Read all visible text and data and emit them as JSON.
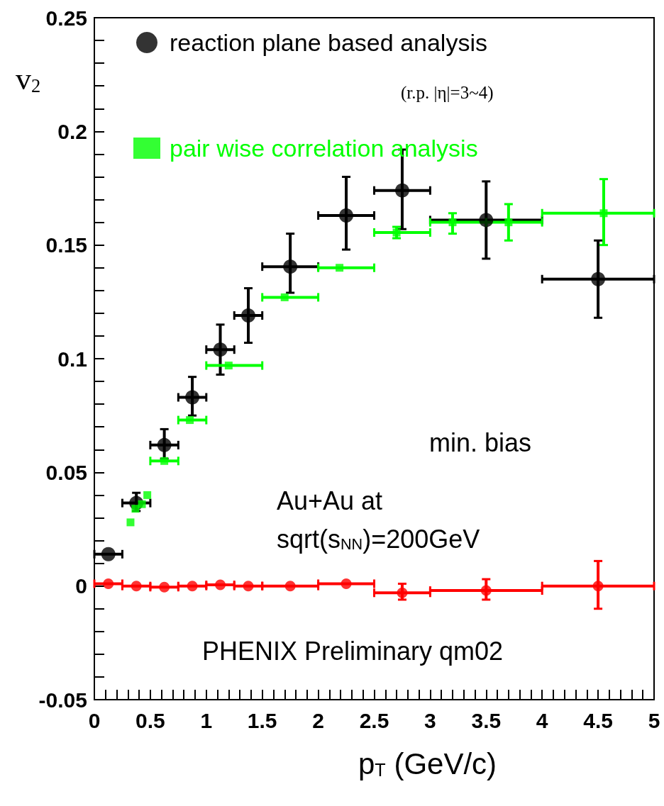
{
  "chart_data": {
    "type": "scatter",
    "xlabel": "p$_{T}$ (GeV/c)",
    "ylabel": "v$_{2}$",
    "xlim": [
      0,
      5
    ],
    "xticks": [
      0,
      {
        "value": 0.1,
        "label": null
      },
      {
        "value": 0.2,
        "label": null
      },
      {
        "value": 0.3,
        "label": null
      },
      {
        "value": 0.4,
        "label": null
      },
      0.5,
      {
        "value": 0.6,
        "label": null
      },
      {
        "value": 0.7,
        "label": null
      },
      {
        "value": 0.8,
        "label": null
      },
      {
        "value": 0.9,
        "label": null
      },
      1,
      {
        "value": 1.1,
        "label": null
      },
      {
        "value": 1.2,
        "label": null
      },
      {
        "value": 1.3,
        "label": null
      },
      {
        "value": 1.4,
        "label": null
      },
      1.5,
      {
        "value": 1.6,
        "label": null
      },
      {
        "value": 1.7,
        "label": null
      },
      {
        "value": 1.8,
        "label": null
      },
      {
        "value": 1.9,
        "label": null
      },
      2,
      {
        "value": 2.1,
        "label": null
      },
      {
        "value": 2.2,
        "label": null
      },
      {
        "value": 2.3,
        "label": null
      },
      {
        "value": 2.4,
        "label": null
      },
      2.5,
      {
        "value": 2.6,
        "label": null
      },
      {
        "value": 2.7,
        "label": null
      },
      {
        "value": 2.8,
        "label": null
      },
      {
        "value": 2.9,
        "label": null
      },
      3,
      {
        "value": 3.1,
        "label": null
      },
      {
        "value": 3.2,
        "label": null
      },
      {
        "value": 3.3,
        "label": null
      },
      {
        "value": 3.4,
        "label": null
      },
      3.5,
      {
        "value": 3.6,
        "label": null
      },
      {
        "value": 3.7,
        "label": null
      },
      {
        "value": 3.8,
        "label": null
      },
      {
        "value": 3.9,
        "label": null
      },
      4,
      {
        "value": 4.1,
        "label": null
      },
      {
        "value": 4.2,
        "label": null
      },
      {
        "value": 4.3,
        "label": null
      },
      {
        "value": 4.4,
        "label": null
      },
      4.5,
      {
        "value": 4.6,
        "label": null
      },
      {
        "value": 4.7,
        "label": null
      },
      {
        "value": 4.8,
        "label": null
      },
      {
        "value": 4.9,
        "label": null
      },
      5
    ],
    "ylim": [
      -0.05,
      0.25
    ],
    "yticks": [
      -0.05,
      {
        "value": -0.04,
        "label": null
      },
      {
        "value": -0.03,
        "label": null
      },
      {
        "value": -0.02,
        "label": null
      },
      {
        "value": -0.01,
        "label": null
      },
      0,
      {
        "value": 0.01,
        "label": null
      },
      {
        "value": 0.02,
        "label": null
      },
      {
        "value": 0.03,
        "label": null
      },
      {
        "value": 0.04,
        "label": null
      },
      0.05,
      {
        "value": 0.06,
        "label": null
      },
      {
        "value": 0.07,
        "label": null
      },
      {
        "value": 0.08,
        "label": null
      },
      {
        "value": 0.09,
        "label": null
      },
      0.1,
      {
        "value": 0.11,
        "label": null
      },
      {
        "value": 0.12,
        "label": null
      },
      {
        "value": 0.13,
        "label": null
      },
      {
        "value": 0.14,
        "label": null
      },
      0.15,
      {
        "value": 0.16,
        "label": null
      },
      {
        "value": 0.17,
        "label": null
      },
      {
        "value": 0.18,
        "label": null
      },
      {
        "value": 0.19,
        "label": null
      },
      0.2,
      {
        "value": 0.21,
        "label": null
      },
      {
        "value": 0.22,
        "label": null
      },
      {
        "value": 0.23,
        "label": null
      },
      {
        "value": 0.24,
        "label": null
      },
      0.25
    ],
    "grid": false,
    "legend": "top left",
    "annotations": [
      "(r.p. |η|=3~4)",
      "min. bias",
      "Au+Au at",
      "sqrt(s$_{NN}$)=200GeV",
      "PHENIX Preliminary qm02"
    ],
    "series": [
      {
        "name": "reaction plane based analysis",
        "color": "#000000",
        "marker": "circle",
        "x": [
          0.125,
          0.375,
          0.625,
          0.875,
          1.125,
          1.375,
          1.75,
          2.25,
          2.75,
          3.5,
          4.5
        ],
        "values": [
          0.014,
          0.0365,
          0.062,
          0.083,
          0.104,
          0.119,
          0.1405,
          0.163,
          0.174,
          0.161,
          0.135
        ],
        "errors": [
          null,
          [
            0.033,
            0.041
          ],
          [
            0.056,
            0.069
          ],
          [
            0.075,
            0.092
          ],
          [
            0.093,
            0.115
          ],
          [
            0.107,
            0.131
          ],
          [
            0.129,
            0.155
          ],
          [
            0.148,
            0.18
          ],
          [
            0.157,
            0.192
          ],
          [
            0.144,
            0.178
          ],
          [
            0.118,
            0.152
          ]
        ],
        "xerrors": [
          0.125,
          0.125,
          0.125,
          0.125,
          0.125,
          0.125,
          0.25,
          0.25,
          0.25,
          0.5,
          0.5
        ]
      },
      {
        "name": "pair wise correlation analysis",
        "color": "#00ff00",
        "marker": "square",
        "x": [
          0.323,
          0.367,
          0.425,
          0.473,
          0.625,
          0.853,
          1.2,
          1.7,
          2.19,
          2.7,
          3.2,
          3.7,
          4.55
        ],
        "values": [
          0.028,
          0.034,
          0.036,
          0.04,
          0.055,
          0.073,
          0.097,
          0.127,
          0.14,
          0.1555,
          0.16,
          0.16,
          0.164
        ],
        "errors": [
          null,
          null,
          null,
          null,
          null,
          null,
          null,
          null,
          null,
          [
            0.153,
            0.158
          ],
          [
            0.155,
            0.164
          ],
          [
            0.152,
            0.168
          ],
          [
            0.15,
            0.179
          ]
        ],
        "xerrors": [
          null,
          null,
          null,
          null,
          [
            0.5,
            0.75
          ],
          [
            0.75,
            1.0
          ],
          [
            1.0,
            1.5
          ],
          [
            1.5,
            2.0
          ],
          [
            2.0,
            2.5
          ],
          [
            2.5,
            3.0
          ],
          [
            3.0,
            3.5
          ],
          [
            3.5,
            4.0
          ],
          [
            4.0,
            5.0
          ]
        ]
      },
      {
        "color": "#ff0000",
        "marker": "circle",
        "x": [
          0.125,
          0.375,
          0.625,
          0.875,
          1.125,
          1.375,
          1.75,
          2.25,
          2.75,
          3.5,
          4.5
        ],
        "values": [
          0.001,
          0,
          -0.0005,
          0,
          0.0005,
          0,
          0,
          0.001,
          -0.003,
          -0.002,
          0
        ],
        "errors": [
          null,
          null,
          null,
          null,
          null,
          null,
          null,
          null,
          [
            -0.006,
            0.001
          ],
          [
            -0.006,
            0.003
          ],
          [
            -0.01,
            0.011
          ]
        ],
        "xerrors": [
          0.125,
          0.125,
          0.125,
          0.125,
          0.125,
          0.125,
          0.25,
          0.25,
          0.25,
          0.5,
          0.5
        ]
      }
    ]
  }
}
